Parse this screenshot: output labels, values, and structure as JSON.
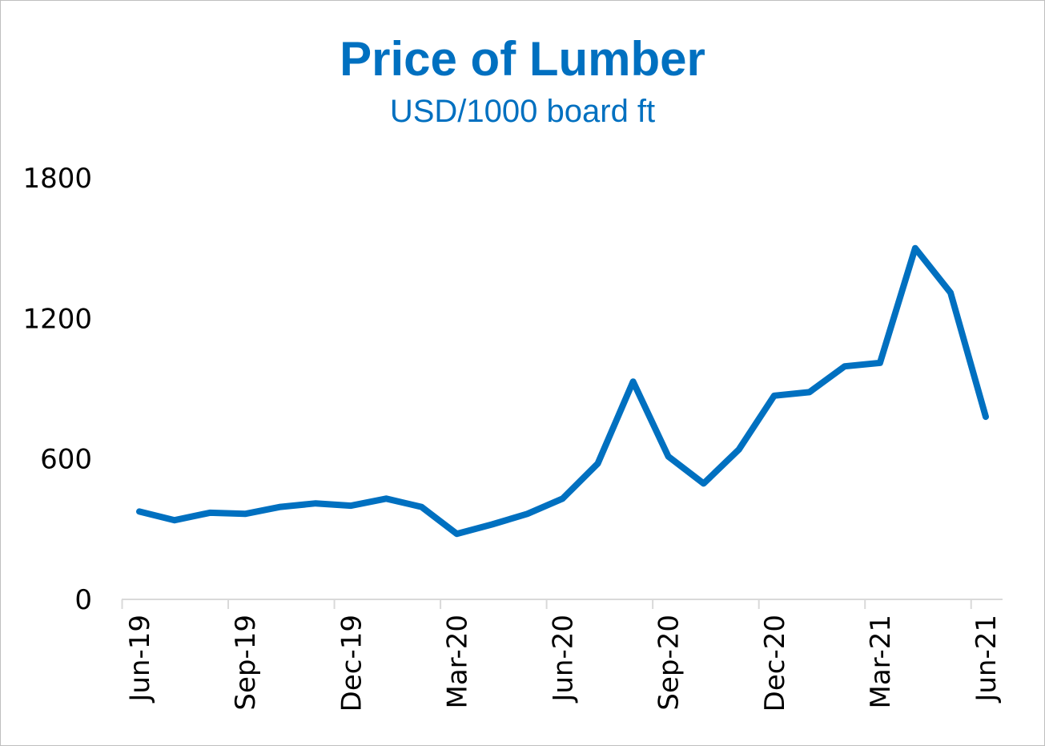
{
  "colors": {
    "accent": "#0070c0",
    "axis": "#d9d9d9",
    "text": "#000000"
  },
  "chart_data": {
    "type": "line",
    "title": "Price of Lumber",
    "subtitle": "USD/1000 board ft",
    "xlabel": "",
    "ylabel": "",
    "ylim": [
      0,
      1800
    ],
    "y_ticks": [
      "0",
      "600",
      "1200",
      "1800"
    ],
    "x_tick_labels": [
      "Jun-19",
      "Sep-19",
      "Dec-19",
      "Mar-20",
      "Jun-20",
      "Sep-20",
      "Dec-20",
      "Mar-21",
      "Jun-21"
    ],
    "grid": false,
    "legend": "none",
    "x": [
      "Jun-19",
      "Jul-19",
      "Aug-19",
      "Sep-19",
      "Oct-19",
      "Nov-19",
      "Dec-19",
      "Jan-20",
      "Feb-20",
      "Mar-20",
      "Apr-20",
      "May-20",
      "Jun-20",
      "Jul-20",
      "Aug-20",
      "Sep-20",
      "Oct-20",
      "Nov-20",
      "Dec-20",
      "Jan-21",
      "Feb-21",
      "Mar-21",
      "Apr-21",
      "May-21",
      "Jun-21"
    ],
    "series": [
      {
        "values": [
          375,
          338,
          370,
          365,
          395,
          410,
          400,
          430,
          395,
          280,
          320,
          365,
          430,
          580,
          930,
          610,
          495,
          640,
          870,
          885,
          995,
          1010,
          1500,
          1310,
          780
        ]
      }
    ]
  }
}
